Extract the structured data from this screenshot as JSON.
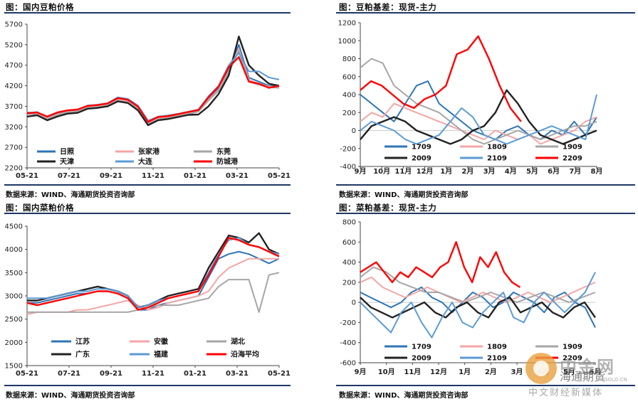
{
  "panels": {
    "tl": {
      "title": "图：国内豆粕价格",
      "source": "数据来源：WIND、海通期货投资咨询部"
    },
    "tr": {
      "title": "图：豆粕基差：现货-主力"
    },
    "bl": {
      "title": "图：国内菜粕价格",
      "source": "数据来源：WIND、海通期货投资咨询部"
    },
    "br": {
      "title": "图：菜粕基差：现货-主力",
      "source": "数据来源：WIND、海通期货投资咨询部"
    }
  },
  "watermark": {
    "brand": "中金网",
    "slogan": "中文财经新媒体",
    "overlay": "海通期货",
    "url": "CNGOLD.CN"
  },
  "chart_data": [
    {
      "id": "tl",
      "type": "line",
      "x_ticks": [
        "05-21",
        "07-21",
        "09-21",
        "11-21",
        "01-21",
        "03-21",
        "05-21"
      ],
      "ylim": [
        2200,
        5700
      ],
      "y_ticks": [
        2200,
        2700,
        3200,
        3700,
        4200,
        4700,
        5200,
        5700
      ],
      "legend_position": "bottom",
      "series": [
        {
          "name": "日照",
          "color": "#2e75b6",
          "values": [
            3550,
            3540,
            3420,
            3520,
            3580,
            3600,
            3700,
            3720,
            3760,
            3900,
            3850,
            3700,
            3300,
            3420,
            3450,
            3500,
            3550,
            3600,
            3900,
            4150,
            4600,
            5200,
            4400,
            4300,
            4200,
            4200
          ]
        },
        {
          "name": "张家港",
          "color": "#f4a6a6",
          "values": [
            3500,
            3520,
            3400,
            3500,
            3560,
            3580,
            3680,
            3700,
            3740,
            3860,
            3820,
            3650,
            3280,
            3400,
            3430,
            3480,
            3530,
            3580,
            3860,
            4100,
            4550,
            5100,
            4350,
            4250,
            4180,
            4170
          ]
        },
        {
          "name": "东莞",
          "color": "#a6a6a6",
          "values": [
            3520,
            3500,
            3380,
            3480,
            3550,
            3570,
            3660,
            3680,
            3720,
            3840,
            3800,
            3630,
            3260,
            3380,
            3410,
            3460,
            3510,
            3570,
            3840,
            4080,
            4520,
            5050,
            4300,
            4220,
            4160,
            4150
          ]
        },
        {
          "name": "天津",
          "color": "#222222",
          "values": [
            3450,
            3480,
            3360,
            3450,
            3520,
            3540,
            3640,
            3660,
            3700,
            3820,
            3780,
            3600,
            3240,
            3360,
            3390,
            3440,
            3490,
            3500,
            3700,
            4000,
            4450,
            5400,
            4700,
            4450,
            4250,
            4200
          ]
        },
        {
          "name": "大连",
          "color": "#5b9bd5",
          "values": [
            3540,
            3560,
            3440,
            3540,
            3600,
            3620,
            3720,
            3740,
            3780,
            3920,
            3880,
            3720,
            3350,
            3450,
            3480,
            3520,
            3570,
            3620,
            3950,
            4200,
            4700,
            5000,
            4550,
            4550,
            4400,
            4350
          ]
        },
        {
          "name": "防城港",
          "color": "#ff0000",
          "values": [
            3530,
            3550,
            3450,
            3550,
            3600,
            3620,
            3710,
            3730,
            3770,
            3900,
            3860,
            3690,
            3320,
            3440,
            3460,
            3510,
            3560,
            3610,
            3920,
            4180,
            4650,
            4900,
            4300,
            4250,
            4150,
            4200
          ]
        }
      ]
    },
    {
      "id": "tr",
      "type": "line",
      "x_ticks": [
        "9月",
        "10月",
        "11月",
        "12月",
        "1月",
        "2月",
        "3月",
        "4月",
        "5月",
        "6月",
        "7月",
        "8月"
      ],
      "ylim": [
        -400,
        1200
      ],
      "y_ticks": [
        -400,
        -200,
        0,
        200,
        400,
        600,
        800,
        1000,
        1200
      ],
      "legend_position": "bottom",
      "series": [
        {
          "name": "1709",
          "color": "#2e75b6",
          "values": [
            400,
            300,
            200,
            100,
            300,
            500,
            550,
            300,
            200,
            100,
            0,
            -50,
            -100,
            0,
            50,
            -50,
            -100,
            0,
            -50,
            100,
            -50,
            150
          ]
        },
        {
          "name": "1809",
          "color": "#f4a6a6",
          "values": [
            100,
            200,
            150,
            300,
            250,
            200,
            150,
            100,
            50,
            0,
            -50,
            -100,
            0,
            -50,
            -100,
            -50,
            -150,
            -100,
            -50,
            0,
            100,
            150
          ]
        },
        {
          "name": "1909",
          "color": "#a6a6a6",
          "values": [
            700,
            800,
            750,
            500,
            400,
            300,
            250,
            200,
            100,
            0,
            -100,
            -150,
            -100,
            -50,
            0,
            -50,
            -100,
            -50,
            0,
            50,
            50,
            100
          ]
        },
        {
          "name": "2009",
          "color": "#222222",
          "values": [
            -100,
            50,
            100,
            150,
            100,
            0,
            -50,
            -100,
            -150,
            -100,
            0,
            50,
            200,
            450,
            300,
            100,
            -50,
            -100,
            -150,
            -100,
            -50,
            0
          ]
        },
        {
          "name": "2109",
          "color": "#5b9bd5",
          "values": [
            0,
            100,
            50,
            0,
            -100,
            -150,
            -100,
            -50,
            100,
            250,
            150,
            -50,
            -100,
            -150,
            -100,
            -50,
            0,
            50,
            0,
            -50,
            -100,
            400
          ]
        },
        {
          "name": "2209",
          "color": "#ff0000",
          "values": [
            450,
            550,
            500,
            400,
            300,
            250,
            350,
            400,
            500,
            850,
            900,
            1050,
            800,
            500,
            250,
            100
          ]
        }
      ]
    },
    {
      "id": "bl",
      "type": "line",
      "x_ticks": [
        "05-21",
        "07-21",
        "09-21",
        "11-21",
        "01-21",
        "03-21",
        "05-21"
      ],
      "ylim": [
        1500,
        4500
      ],
      "y_ticks": [
        1500,
        2000,
        2500,
        3000,
        3500,
        4000,
        4500
      ],
      "legend_position": "bottom",
      "series": [
        {
          "name": "江苏",
          "color": "#2e75b6",
          "values": [
            2850,
            2850,
            2900,
            2950,
            3000,
            3050,
            3050,
            3100,
            3100,
            3050,
            2950,
            2700,
            2700,
            2800,
            2850,
            2900,
            2950,
            3000,
            3400,
            3800,
            3900,
            3950,
            3900,
            3800,
            3700,
            3800
          ]
        },
        {
          "name": "安徽",
          "color": "#f4a6a6",
          "values": [
            2600,
            2650,
            2650,
            2650,
            2650,
            2700,
            2700,
            2750,
            2800,
            2850,
            2900,
            2800,
            2700,
            2750,
            2850,
            2900,
            2950,
            3000,
            3100,
            3400,
            3600,
            3700,
            3800,
            3800,
            3800,
            3800
          ]
        },
        {
          "name": "湖北",
          "color": "#a6a6a6",
          "values": [
            2650,
            2650,
            2650,
            2650,
            2650,
            2650,
            2650,
            2650,
            2650,
            2650,
            2650,
            2700,
            2750,
            2800,
            2800,
            2800,
            2850,
            2900,
            2950,
            3200,
            3350,
            3350,
            3350,
            2650,
            3450,
            3500
          ]
        },
        {
          "name": "广东",
          "color": "#222222",
          "values": [
            2900,
            2900,
            2950,
            3000,
            3050,
            3100,
            3150,
            3200,
            3150,
            3100,
            3000,
            2750,
            2800,
            2900,
            3000,
            3050,
            3100,
            3150,
            3600,
            3950,
            4300,
            4250,
            4150,
            4350,
            4000,
            3900
          ]
        },
        {
          "name": "福建",
          "color": "#5b9bd5",
          "values": [
            2950,
            2950,
            2950,
            3000,
            3050,
            3100,
            3100,
            3150,
            3150,
            3100,
            3000,
            2750,
            2800,
            2900,
            2950,
            3000,
            3050,
            3100,
            3500,
            3900,
            4200,
            4250,
            4100,
            4050,
            3950,
            3900
          ]
        },
        {
          "name": "沿海平均",
          "color": "#ff0000",
          "values": [
            2850,
            2800,
            2850,
            2900,
            2950,
            3000,
            3050,
            3100,
            3100,
            3050,
            2950,
            2700,
            2750,
            2850,
            2950,
            3000,
            3050,
            3100,
            3450,
            3850,
            4250,
            4200,
            4100,
            4050,
            3950,
            3850
          ]
        }
      ]
    },
    {
      "id": "br",
      "type": "line",
      "x_ticks": [
        "9月",
        "10月",
        "11月",
        "12月",
        "1月",
        "2月",
        "3月",
        "4月",
        "5月",
        "6月"
      ],
      "ylim": [
        -600,
        800
      ],
      "y_ticks": [
        -600,
        -400,
        -200,
        0,
        200,
        400,
        600,
        800
      ],
      "legend_position": "bottom",
      "series": [
        {
          "name": "1709",
          "color": "#2e75b6",
          "values": [
            100,
            50,
            0,
            -50,
            0,
            100,
            150,
            50,
            0,
            -100,
            0,
            100,
            50,
            -50,
            0,
            100,
            50,
            0,
            -100,
            50,
            100,
            0,
            -50,
            -250
          ]
        },
        {
          "name": "1809",
          "color": "#f4a6a6",
          "values": [
            200,
            250,
            150,
            100,
            50,
            100,
            150,
            100,
            50,
            0,
            50,
            100,
            50,
            0,
            50,
            100,
            50,
            0,
            50,
            100,
            150,
            200
          ]
        },
        {
          "name": "1909",
          "color": "#a6a6a6",
          "values": [
            250,
            350,
            300,
            200,
            150,
            100,
            100,
            50,
            0,
            50,
            100,
            50,
            0,
            50,
            100,
            50,
            0,
            50,
            100
          ]
        },
        {
          "name": "2009",
          "color": "#222222",
          "values": [
            50,
            -50,
            -100,
            -150,
            -100,
            -50,
            0,
            -100,
            -150,
            -50,
            0,
            -100,
            -150,
            0,
            50,
            -100,
            -50,
            0,
            -100,
            -150,
            -50,
            0,
            -150
          ]
        },
        {
          "name": "2109",
          "color": "#5b9bd5",
          "values": [
            0,
            -100,
            -200,
            -300,
            -100,
            0,
            -200,
            -350,
            -150,
            0,
            -200,
            -250,
            -100,
            0,
            100,
            -150,
            -200,
            0,
            100,
            0,
            -100,
            0,
            100,
            300
          ]
        },
        {
          "name": "2209",
          "color": "#ff0000",
          "values": [
            300,
            350,
            400,
            300,
            200,
            300,
            250,
            350,
            300,
            250,
            350,
            400,
            600,
            350,
            200,
            450,
            350,
            500,
            300,
            200,
            150
          ]
        }
      ]
    }
  ]
}
